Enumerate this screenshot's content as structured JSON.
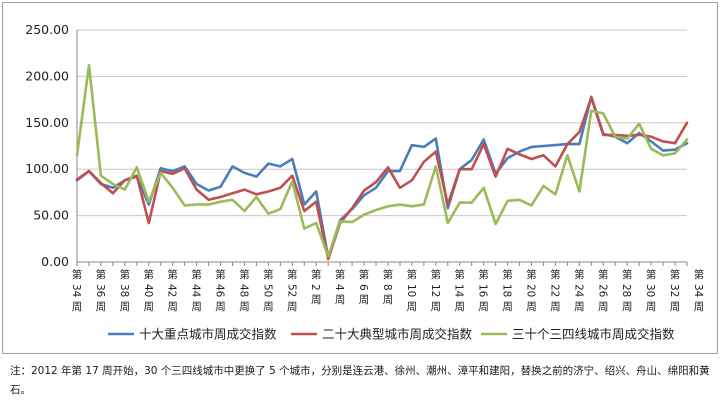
{
  "chart_data": {
    "type": "line",
    "title": "",
    "xlabel": "",
    "ylabel": "",
    "ylim": [
      0,
      250
    ],
    "yticks": [
      "0.00",
      "50.00",
      "100.00",
      "150.00",
      "200.00",
      "250.00"
    ],
    "grid": true,
    "legend_position": "bottom",
    "x_tick_labels": [
      "第34周",
      "第36周",
      "第38周",
      "第40周",
      "第42周",
      "第44周",
      "第46周",
      "第48周",
      "第50周",
      "第52周",
      "第2周",
      "第4周",
      "第6周",
      "第8周",
      "第10周",
      "第12周",
      "第14周",
      "第16周",
      "第18周",
      "第20周",
      "第22周",
      "第24周",
      "第26周",
      "第28周",
      "第30周",
      "第32周",
      "第34周"
    ],
    "series": [
      {
        "name": "十大重点城市周成交指数",
        "color": "#4a7ebb",
        "values": [
          88,
          98,
          84,
          80,
          88,
          92,
          62,
          101,
          98,
          103,
          84,
          77,
          81,
          103,
          96,
          92,
          106,
          103,
          111,
          62,
          76,
          5,
          45,
          57,
          72,
          80,
          98,
          98,
          126,
          124,
          133,
          58,
          100,
          110,
          132,
          95,
          112,
          119,
          124,
          125,
          126,
          127,
          127,
          178,
          138,
          135,
          128,
          139,
          130,
          120,
          121,
          128
        ]
      },
      {
        "name": "二十大典型城市周成交指数",
        "color": "#c0504d",
        "values": [
          89,
          98,
          85,
          74,
          88,
          93,
          42,
          98,
          95,
          101,
          78,
          67,
          70,
          74,
          78,
          73,
          76,
          80,
          93,
          55,
          65,
          3,
          42,
          58,
          77,
          86,
          102,
          80,
          88,
          108,
          119,
          62,
          100,
          100,
          127,
          92,
          122,
          116,
          111,
          115,
          103,
          127,
          140,
          177,
          137,
          137,
          136,
          137,
          135,
          130,
          128,
          150
        ]
      },
      {
        "name": "三十个三四线城市周成交指数",
        "color": "#9bbb59",
        "values": [
          115,
          212,
          93,
          84,
          78,
          102,
          65,
          96,
          80,
          61,
          62,
          62,
          65,
          67,
          55,
          70,
          52,
          57,
          87,
          36,
          42,
          6,
          44,
          43,
          51,
          56,
          60,
          62,
          60,
          62,
          103,
          42,
          64,
          64,
          80,
          41,
          66,
          67,
          61,
          82,
          73,
          115,
          76,
          163,
          160,
          135,
          133,
          149,
          122,
          115,
          117,
          132
        ]
      }
    ]
  },
  "note": "注：2012 年第 17 周开始，30 个三四线城市中更换了 5 个城市，分别是连云港、徐州、潮州、漳平和建阳，替换之前的济宁、绍兴、舟山、绵阳和黄石。"
}
